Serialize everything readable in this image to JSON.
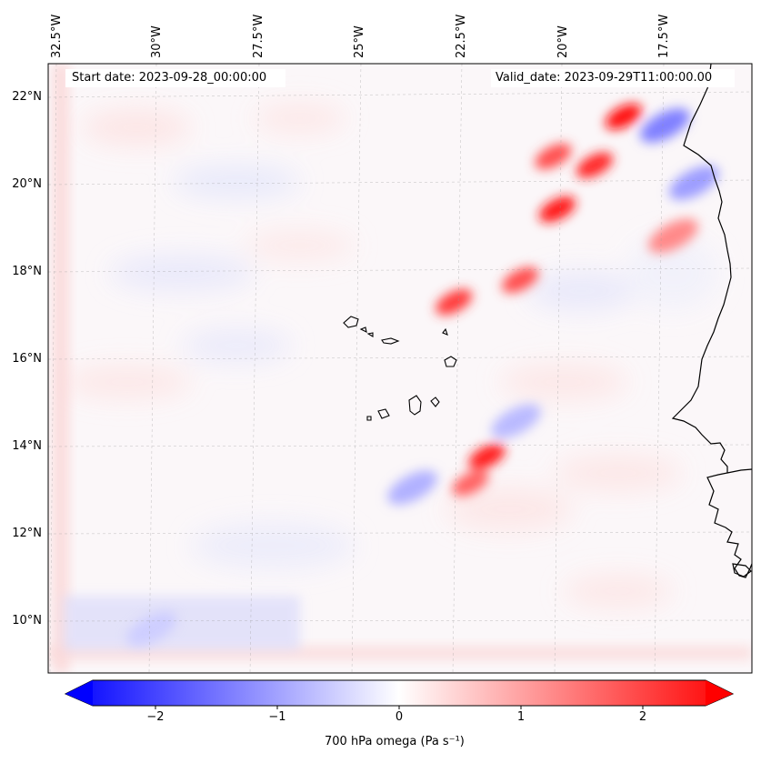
{
  "header": {
    "start_date": "Start date: 2023-09-28_00:00:00",
    "valid_date": "Valid_date: 2023-09-29T11:00:00.00"
  },
  "map": {
    "lon_labels": [
      "32.5°W",
      "30°W",
      "27.5°W",
      "25°W",
      "22.5°W",
      "20°W",
      "17.5°W"
    ],
    "lat_labels": [
      "22°N",
      "20°N",
      "18°N",
      "16°N",
      "14°N",
      "12°N",
      "10°N"
    ]
  },
  "colorbar": {
    "label": "700 hPa omega (Pa s⁻¹)",
    "ticks": [
      "−2",
      "−1",
      "0",
      "1",
      "2"
    ],
    "colors": {
      "negative": "#0000ff",
      "neutral": "#ffffff",
      "positive": "#ff0000"
    }
  },
  "chart_data": {
    "type": "heatmap",
    "title": "",
    "variable": "700 hPa omega",
    "units": "Pa s^-1",
    "clim": [
      -2.6,
      2.6
    ],
    "cmap": "bwr",
    "lon_range": [
      -32.5,
      -15.5
    ],
    "lat_range": [
      9,
      22.8
    ],
    "features": [
      {
        "lon": -18.6,
        "lat": 21.6,
        "value": 2.5
      },
      {
        "lon": -19.3,
        "lat": 20.5,
        "value": 2.2
      },
      {
        "lon": -20.3,
        "lat": 20.7,
        "value": 1.8
      },
      {
        "lon": -20.2,
        "lat": 19.5,
        "value": 2.4
      },
      {
        "lon": -22.7,
        "lat": 17.4,
        "value": 2.0
      },
      {
        "lon": -21.1,
        "lat": 17.9,
        "value": 1.8
      },
      {
        "lon": -21.9,
        "lat": 13.9,
        "value": 2.3
      },
      {
        "lon": -22.3,
        "lat": 13.3,
        "value": 1.6
      },
      {
        "lon": -17.4,
        "lat": 18.9,
        "value": 1.2
      },
      {
        "lon": -17.6,
        "lat": 21.4,
        "value": -1.3
      },
      {
        "lon": -16.9,
        "lat": 20.1,
        "value": -1.0
      },
      {
        "lon": -23.7,
        "lat": 13.2,
        "value": -0.8
      },
      {
        "lon": -21.2,
        "lat": 14.7,
        "value": -0.7
      },
      {
        "lon": -30.0,
        "lat": 10.0,
        "value": -0.5
      }
    ]
  }
}
